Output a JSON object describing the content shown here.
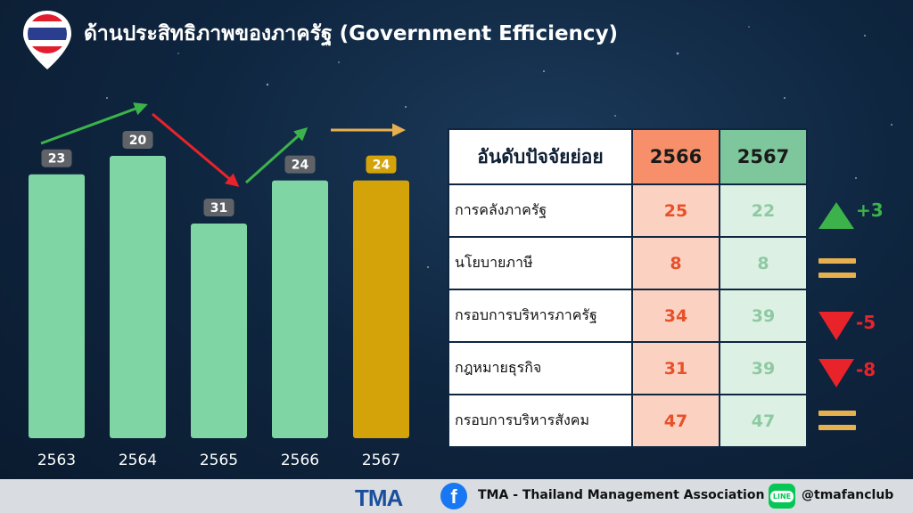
{
  "title": "ด้านประสิทธิภาพของภาครัฐ  (Government Efficiency)",
  "chart_data": {
    "type": "bar",
    "categories": [
      "2563",
      "2564",
      "2565",
      "2566",
      "2567"
    ],
    "values": [
      23,
      20,
      31,
      24,
      24
    ],
    "value_labels": [
      "23",
      "20",
      "31",
      "24",
      "24"
    ],
    "trend_arrows": [
      "up",
      "down",
      "up",
      "flat"
    ],
    "colors": {
      "bar": "#7fd6a4",
      "highlight": "#d4a30a",
      "label_bg": "#5f6368",
      "up": "#3bb34a",
      "down": "#e8232a",
      "flat": "#e7b04e"
    }
  },
  "table": {
    "header": {
      "label": "อันดับปัจจัยย่อย",
      "year1": "2566",
      "year2": "2567"
    },
    "rows": [
      {
        "label": "การคลังภาครัฐ",
        "v1": "25",
        "v2": "22",
        "trend": "up",
        "delta": "+3"
      },
      {
        "label": "นโยบายภาษี",
        "v1": "8",
        "v2": "8",
        "trend": "flat",
        "delta": ""
      },
      {
        "label": "กรอบการบริหารภาครัฐ",
        "v1": "34",
        "v2": "39",
        "trend": "down",
        "delta": "-5"
      },
      {
        "label": "กฎหมายธุรกิจ",
        "v1": "31",
        "v2": "39",
        "trend": "down",
        "delta": "-8"
      },
      {
        "label": "กรอบการบริหารสังคม",
        "v1": "47",
        "v2": "47",
        "trend": "flat",
        "delta": ""
      }
    ]
  },
  "footer": {
    "tma_logo": "TMA",
    "facebook_glyph": "f",
    "org": "TMA - Thailand Management Association",
    "line_glyph": "LINE",
    "handle": "@tmafanclub"
  }
}
